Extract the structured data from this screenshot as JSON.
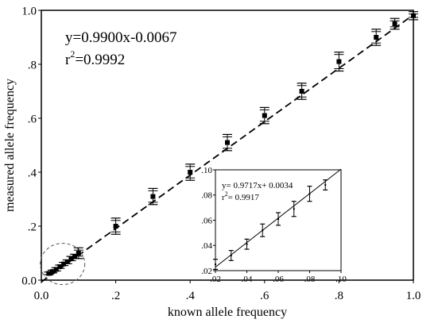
{
  "chart_data": [
    {
      "type": "scatter",
      "title": "",
      "xlabel": "known allele frequency",
      "ylabel": "measured allele frequency",
      "xlim": [
        0,
        1
      ],
      "ylim": [
        0,
        1
      ],
      "x_tick_labels": [
        "0.0",
        ".2",
        ".4",
        ".6",
        ".8",
        "1.0"
      ],
      "x_tick_values": [
        0,
        0.2,
        0.4,
        0.6,
        0.8,
        1.0
      ],
      "y_tick_labels": [
        "0.0",
        ".2",
        ".4",
        ".6",
        ".8",
        "1.0"
      ],
      "y_tick_values": [
        0,
        0.2,
        0.4,
        0.6,
        0.8,
        1.0
      ],
      "grid": false,
      "fit_line": {
        "style": "dashed",
        "slope": 0.99,
        "intercept": -0.0067
      },
      "annotations": [
        "y=0.9900x-0.0067",
        "r",
        "2",
        "=0.9992"
      ],
      "x": [
        0.02,
        0.03,
        0.04,
        0.05,
        0.06,
        0.07,
        0.08,
        0.09,
        0.1,
        0.2,
        0.3,
        0.4,
        0.5,
        0.6,
        0.7,
        0.8,
        0.9,
        0.95,
        1.0
      ],
      "y": [
        0.025,
        0.032,
        0.04,
        0.05,
        0.06,
        0.068,
        0.08,
        0.088,
        0.1,
        0.2,
        0.31,
        0.4,
        0.51,
        0.61,
        0.7,
        0.81,
        0.9,
        0.95,
        0.98
      ],
      "y_err": [
        0.005,
        0.005,
        0.006,
        0.006,
        0.006,
        0.007,
        0.008,
        0.008,
        0.02,
        0.03,
        0.03,
        0.03,
        0.03,
        0.03,
        0.03,
        0.035,
        0.03,
        0.02,
        0.015
      ],
      "highlight": "dashed circle around low-frequency points (x 0.02–0.10)"
    },
    {
      "type": "scatter",
      "title": "",
      "xlabel": "",
      "ylabel": "",
      "xlim": [
        0.02,
        0.1
      ],
      "ylim": [
        0.02,
        0.1
      ],
      "x_tick_labels": [
        ".02",
        ".04",
        ".06",
        ".08",
        ".10"
      ],
      "x_tick_values": [
        0.02,
        0.04,
        0.06,
        0.08,
        0.1
      ],
      "y_tick_labels": [
        ".02",
        ".04",
        ".06",
        ".08",
        ".10"
      ],
      "y_tick_values": [
        0.02,
        0.04,
        0.06,
        0.08,
        0.1
      ],
      "grid": false,
      "fit_line": {
        "style": "solid",
        "slope": 0.9717,
        "intercept": 0.0034
      },
      "annotations": [
        "y= 0.9717x+ 0.0034",
        "r",
        "2",
        "= 0.9917"
      ],
      "x": [
        0.02,
        0.03,
        0.04,
        0.05,
        0.06,
        0.07,
        0.08,
        0.09
      ],
      "y": [
        0.025,
        0.032,
        0.041,
        0.052,
        0.061,
        0.069,
        0.081,
        0.088
      ],
      "y_err": [
        0.004,
        0.004,
        0.004,
        0.005,
        0.005,
        0.006,
        0.006,
        0.004
      ]
    }
  ]
}
